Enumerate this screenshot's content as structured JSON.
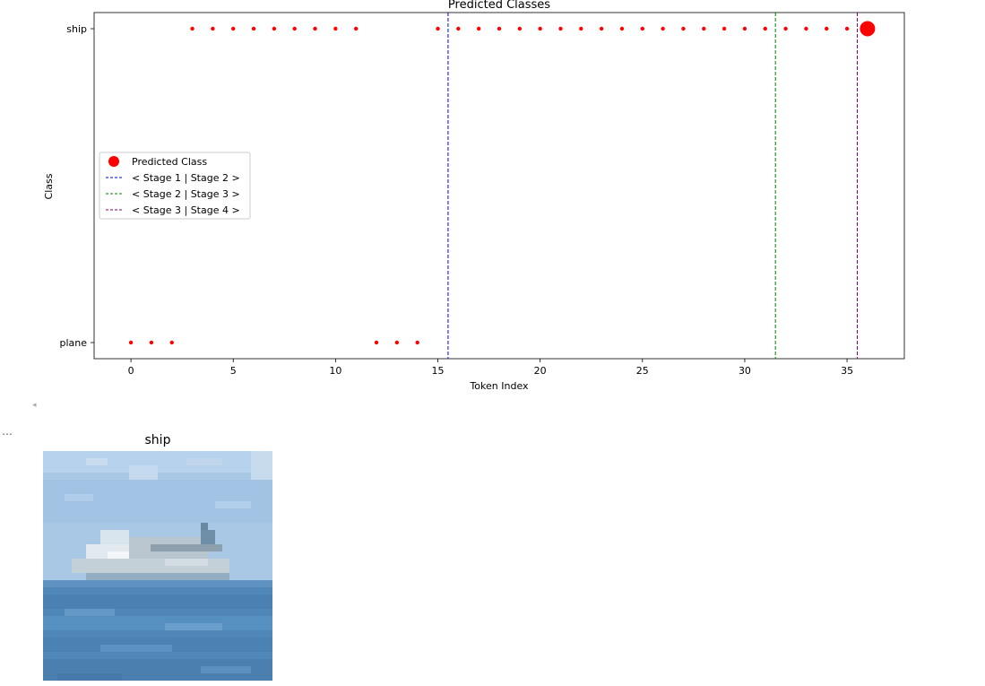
{
  "chart_data": {
    "type": "scatter",
    "title": "Predicted Classes",
    "xlabel": "Token Index",
    "ylabel": "Class",
    "xlim": [
      -1.8,
      37.8
    ],
    "xticks": [
      0,
      5,
      10,
      15,
      20,
      25,
      30,
      35
    ],
    "categories": [
      "plane",
      "ship"
    ],
    "points": [
      {
        "x": 0,
        "y": "plane"
      },
      {
        "x": 1,
        "y": "plane"
      },
      {
        "x": 2,
        "y": "plane"
      },
      {
        "x": 3,
        "y": "ship"
      },
      {
        "x": 4,
        "y": "ship"
      },
      {
        "x": 5,
        "y": "ship"
      },
      {
        "x": 6,
        "y": "ship"
      },
      {
        "x": 7,
        "y": "ship"
      },
      {
        "x": 8,
        "y": "ship"
      },
      {
        "x": 9,
        "y": "ship"
      },
      {
        "x": 10,
        "y": "ship"
      },
      {
        "x": 11,
        "y": "ship"
      },
      {
        "x": 12,
        "y": "plane"
      },
      {
        "x": 13,
        "y": "plane"
      },
      {
        "x": 14,
        "y": "plane"
      },
      {
        "x": 15,
        "y": "ship"
      },
      {
        "x": 16,
        "y": "ship"
      },
      {
        "x": 17,
        "y": "ship"
      },
      {
        "x": 18,
        "y": "ship"
      },
      {
        "x": 19,
        "y": "ship"
      },
      {
        "x": 20,
        "y": "ship"
      },
      {
        "x": 21,
        "y": "ship"
      },
      {
        "x": 22,
        "y": "ship"
      },
      {
        "x": 23,
        "y": "ship"
      },
      {
        "x": 24,
        "y": "ship"
      },
      {
        "x": 25,
        "y": "ship"
      },
      {
        "x": 26,
        "y": "ship"
      },
      {
        "x": 27,
        "y": "ship"
      },
      {
        "x": 28,
        "y": "ship"
      },
      {
        "x": 29,
        "y": "ship"
      },
      {
        "x": 30,
        "y": "ship"
      },
      {
        "x": 31,
        "y": "ship"
      },
      {
        "x": 32,
        "y": "ship"
      },
      {
        "x": 33,
        "y": "ship"
      },
      {
        "x": 34,
        "y": "ship"
      },
      {
        "x": 35,
        "y": "ship"
      }
    ],
    "predicted": {
      "x": 36,
      "y": "ship",
      "label": "Predicted Class",
      "color": "#ff0000"
    },
    "point_color": "#ff0000",
    "stage_lines": [
      {
        "x": 15.5,
        "label": "< Stage 1 | Stage 2 >",
        "color": "#0000ff"
      },
      {
        "x": 31.5,
        "label": "< Stage 2 | Stage 3 >",
        "color": "#008000"
      },
      {
        "x": 35.5,
        "label": "< Stage 3 | Stage 4 >",
        "color": "#800080"
      }
    ],
    "legend_position": "center-left",
    "grid": false
  },
  "image_panel": {
    "title": "ship",
    "icon": "ship-photo"
  },
  "notebook": {
    "collapse_glyph": "◂",
    "output_ellipsis": "…"
  }
}
